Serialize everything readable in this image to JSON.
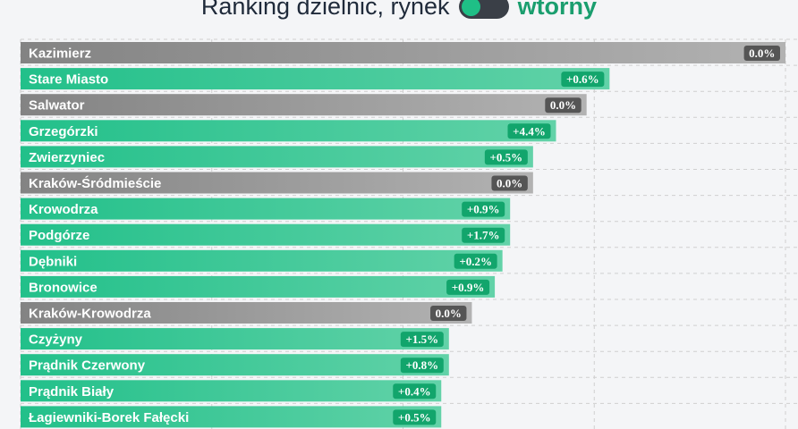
{
  "header": {
    "title": "Ranking dzielnic, rynek",
    "mode": "wtorny"
  },
  "colors": {
    "positive": "#22c08a",
    "positive_end": "#62d2a8",
    "neutral": "#838383",
    "neutral_end": "#b2b2b2",
    "badge_positive": "#12a56c",
    "badge_neutral": "#555555",
    "grid": "#cfcfcf"
  },
  "chart_data": {
    "type": "bar",
    "orientation": "horizontal",
    "grid": true,
    "categories": [
      "Kazimierz",
      "Stare Miasto",
      "Salwator",
      "Grzegórzki",
      "Zwierzyniec",
      "Kraków-Śródmieście",
      "Krowodrza",
      "Podgórze",
      "Dębniki",
      "Bronowice",
      "Kraków-Krowodrza",
      "Czyżyny",
      "Prądnik Czerwony",
      "Prądnik Biały",
      "Łagiewniki-Borek Fałęcki"
    ],
    "values": [
      100,
      77,
      74,
      70,
      67,
      67,
      64,
      64,
      63,
      62,
      59,
      56,
      56,
      55,
      55
    ],
    "changes": [
      "0.0%",
      "+0.6%",
      "0.0%",
      "+4.4%",
      "+0.5%",
      "0.0%",
      "+0.9%",
      "+1.7%",
      "+0.2%",
      "+0.9%",
      "0.0%",
      "+1.5%",
      "+0.8%",
      "+0.4%",
      "+0.5%"
    ],
    "xlim": [
      0,
      100
    ]
  }
}
